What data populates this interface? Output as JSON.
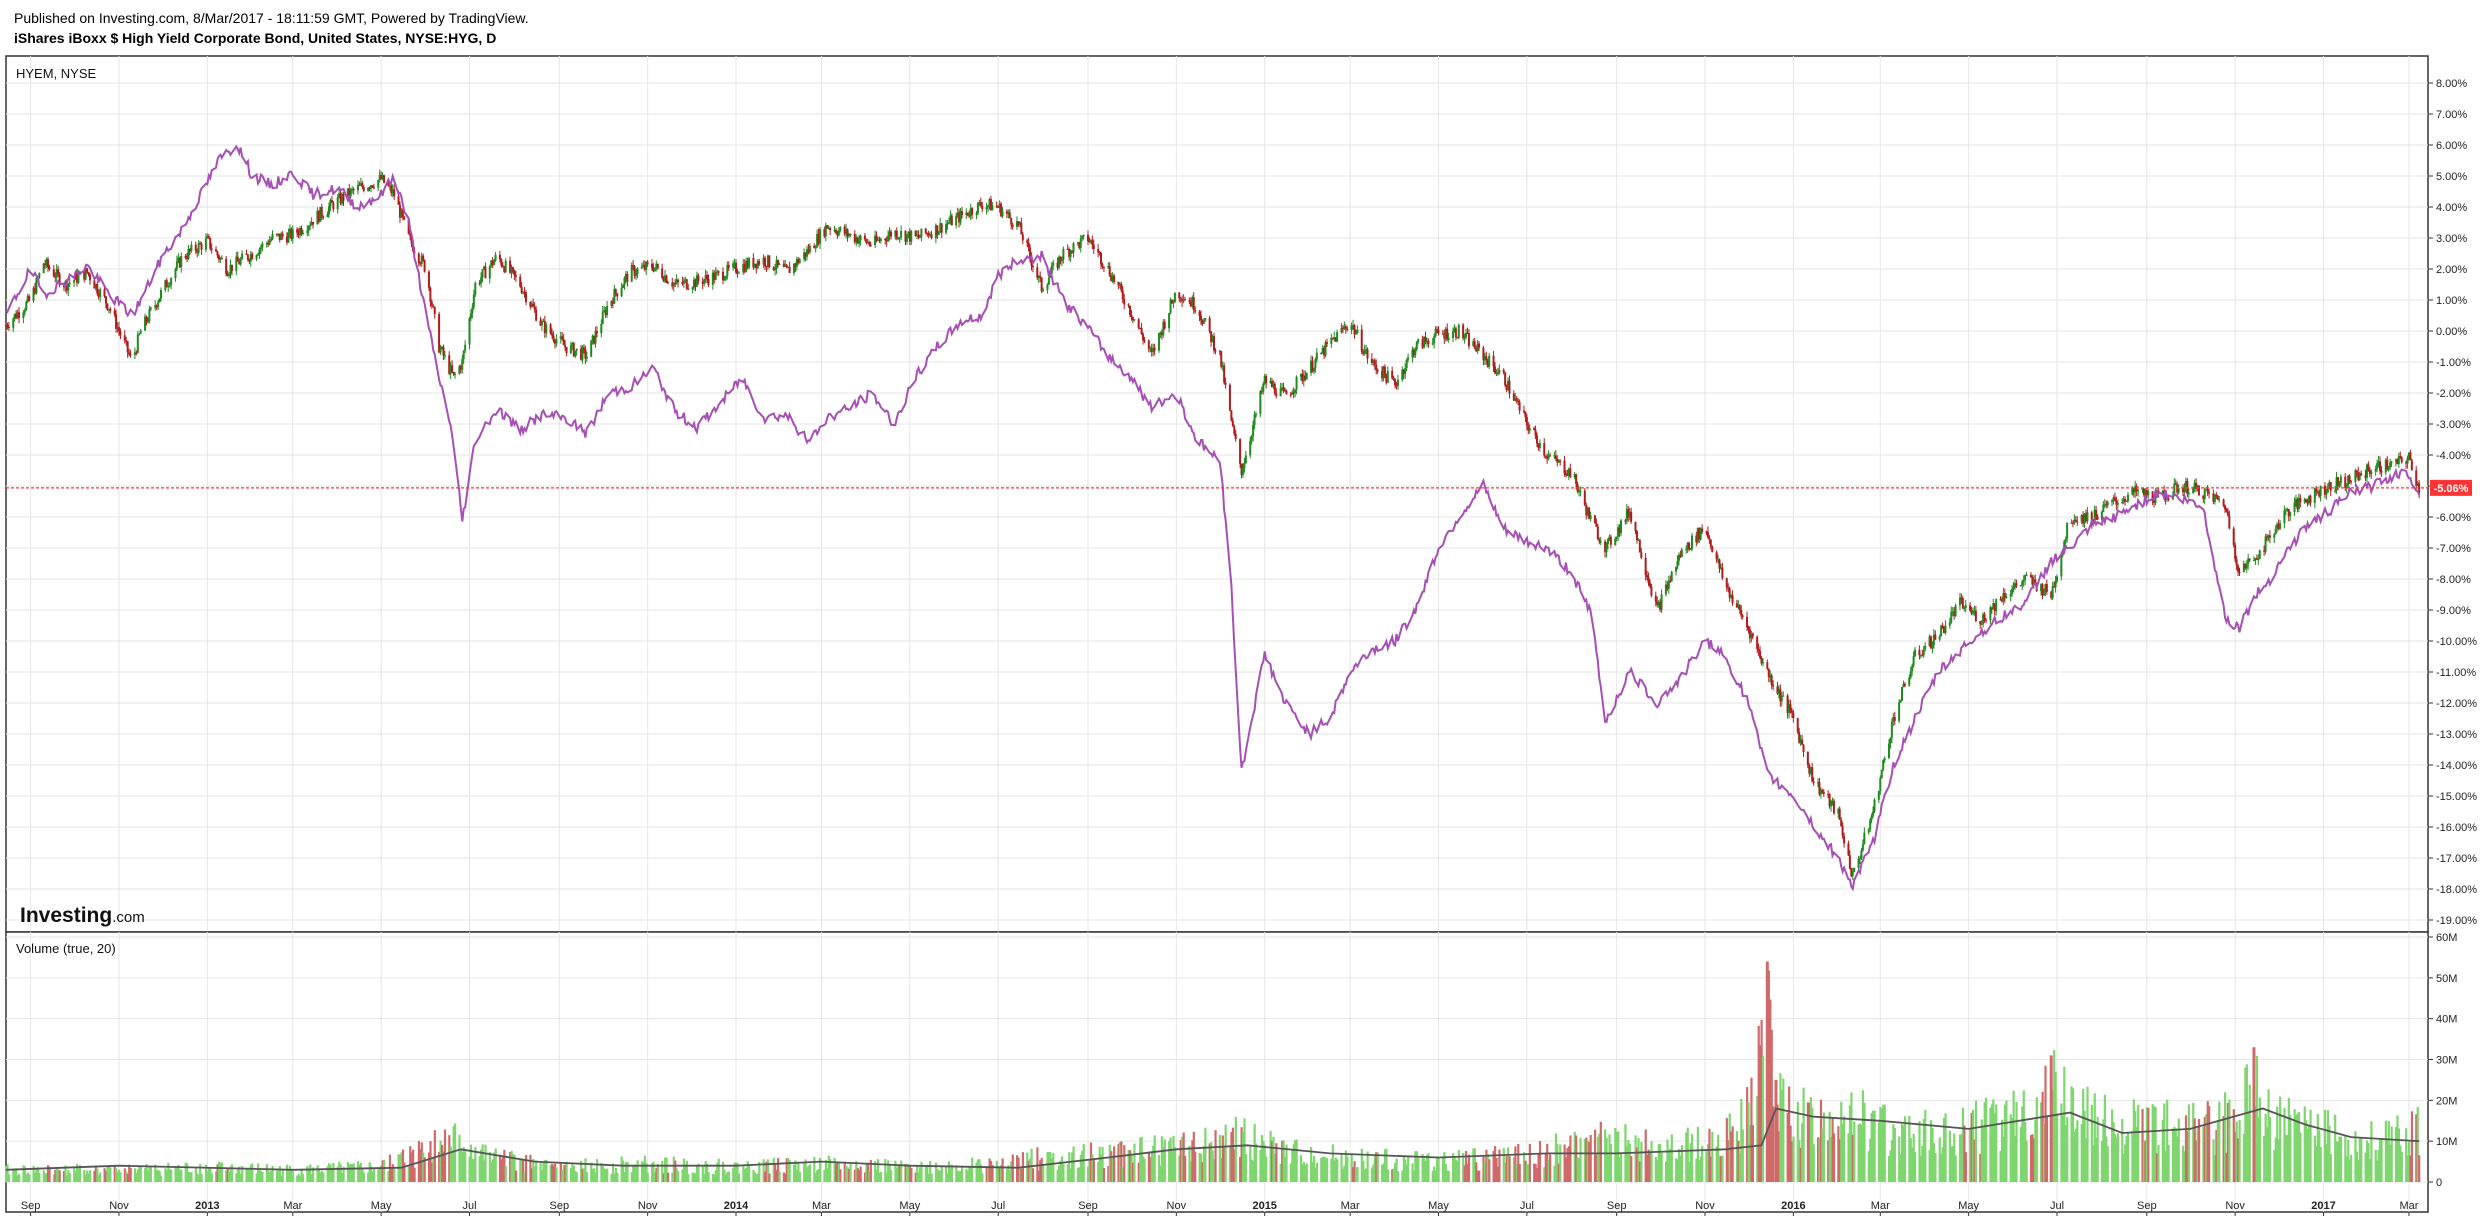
{
  "header": {
    "published": "Published on Investing.com, 8/Mar/2017 - 18:11:59 GMT, Powered by TradingView.",
    "instrument": "iShares iBoxx $ High Yield Corporate Bond, United States, NYSE:HYG, D"
  },
  "brand": {
    "bold": "Investing",
    "suffix": ".com"
  },
  "colors": {
    "up": "#1f8a1f",
    "down": "#b01c1c",
    "compare_line": "#a64fb4",
    "current_line": "#ff3333",
    "volume_up": "#7fd66f",
    "volume_down": "#d06a6a",
    "volume_ma": "#555555",
    "grid": "#e6e6e6",
    "frame": "#333333"
  },
  "chart_data": [
    {
      "type": "line",
      "pane": "price",
      "title": "HYEM, NYSE",
      "scale": "percent",
      "x_axis_labels": [
        "Sep",
        "Nov",
        "2013",
        "Mar",
        "May",
        "Jul",
        "Sep",
        "Nov",
        "2014",
        "Mar",
        "May",
        "Jul",
        "Sep",
        "Nov",
        "2015",
        "Mar",
        "May",
        "Jul",
        "Sep",
        "Nov",
        "2016",
        "Mar",
        "May",
        "Jul",
        "Sep",
        "Nov",
        "2017",
        "Mar"
      ],
      "x_axis_bold": [
        "2013",
        "2014",
        "2015",
        "2016",
        "2017"
      ],
      "x_range": [
        "2012-08-15",
        "2017-03-10"
      ],
      "y_ticks": [
        "8.00%",
        "7.00%",
        "6.00%",
        "5.00%",
        "4.00%",
        "3.00%",
        "2.00%",
        "1.00%",
        "0.00%",
        "-1.00%",
        "-2.00%",
        "-3.00%",
        "-4.00%",
        "-5.00%",
        "-6.00%",
        "-7.00%",
        "-8.00%",
        "-9.00%",
        "-10.00%",
        "-11.00%",
        "-12.00%",
        "-13.00%",
        "-14.00%",
        "-15.00%",
        "-16.00%",
        "-17.00%",
        "-18.00%",
        "-19.00%"
      ],
      "ylim": [
        -19.5,
        8.6
      ],
      "current_value_label": "-5.06%",
      "current_value": -5.06,
      "grid": true,
      "series": [
        {
          "name": "HYG",
          "style": "candlestick",
          "x": [
            "2012-08-15",
            "2012-09-01",
            "2012-09-10",
            "2012-09-25",
            "2012-10-10",
            "2012-10-25",
            "2012-11-10",
            "2012-11-16",
            "2012-12-01",
            "2012-12-15",
            "2013-01-01",
            "2013-01-15",
            "2013-02-01",
            "2013-02-15",
            "2013-03-01",
            "2013-03-15",
            "2013-04-01",
            "2013-04-15",
            "2013-05-01",
            "2013-05-10",
            "2013-05-20",
            "2013-06-01",
            "2013-06-10",
            "2013-06-20",
            "2013-06-26",
            "2013-07-05",
            "2013-07-20",
            "2013-08-05",
            "2013-08-20",
            "2013-09-05",
            "2013-09-20",
            "2013-10-05",
            "2013-10-20",
            "2013-11-05",
            "2013-11-20",
            "2013-12-05",
            "2013-12-20",
            "2014-01-05",
            "2014-01-20",
            "2014-02-05",
            "2014-02-20",
            "2014-03-05",
            "2014-03-20",
            "2014-04-05",
            "2014-04-20",
            "2014-05-05",
            "2014-05-20",
            "2014-06-05",
            "2014-06-20",
            "2014-07-01",
            "2014-07-15",
            "2014-07-31",
            "2014-08-15",
            "2014-09-01",
            "2014-09-15",
            "2014-10-01",
            "2014-10-15",
            "2014-11-01",
            "2014-11-15",
            "2014-12-01",
            "2014-12-10",
            "2014-12-16",
            "2015-01-01",
            "2015-01-15",
            "2015-02-01",
            "2015-02-15",
            "2015-03-01",
            "2015-03-15",
            "2015-04-01",
            "2015-04-15",
            "2015-05-01",
            "2015-05-15",
            "2015-06-01",
            "2015-06-15",
            "2015-07-01",
            "2015-07-15",
            "2015-08-01",
            "2015-08-15",
            "2015-08-25",
            "2015-09-10",
            "2015-09-29",
            "2015-10-15",
            "2015-11-01",
            "2015-11-15",
            "2015-12-01",
            "2015-12-14",
            "2016-01-01",
            "2016-01-15",
            "2016-02-01",
            "2016-02-11",
            "2016-02-25",
            "2016-03-10",
            "2016-03-25",
            "2016-04-10",
            "2016-04-25",
            "2016-05-10",
            "2016-05-25",
            "2016-06-10",
            "2016-06-27",
            "2016-07-10",
            "2016-07-25",
            "2016-08-10",
            "2016-08-25",
            "2016-09-10",
            "2016-09-25",
            "2016-10-10",
            "2016-10-25",
            "2016-11-04",
            "2016-11-20",
            "2016-12-05",
            "2016-12-20",
            "2017-01-05",
            "2017-01-20",
            "2017-02-05",
            "2017-02-20",
            "2017-03-01",
            "2017-03-08"
          ],
          "values": [
            0.2,
            1.0,
            2.2,
            1.5,
            1.9,
            0.8,
            -1.0,
            0.0,
            1.3,
            2.4,
            2.9,
            2.0,
            2.5,
            3.0,
            3.1,
            3.6,
            4.2,
            4.6,
            4.9,
            4.4,
            3.0,
            2.0,
            -0.5,
            -1.5,
            -1.0,
            1.5,
            2.4,
            1.5,
            0.2,
            -0.5,
            -0.8,
            0.9,
            1.9,
            2.1,
            1.5,
            1.6,
            1.8,
            2.1,
            2.3,
            1.9,
            2.6,
            3.4,
            3.1,
            2.8,
            3.2,
            3.0,
            3.3,
            3.7,
            4.1,
            4.0,
            3.4,
            1.4,
            2.5,
            3.0,
            2.0,
            0.6,
            -0.8,
            1.3,
            0.8,
            -0.8,
            -3.2,
            -4.5,
            -1.6,
            -2.1,
            -1.2,
            -0.4,
            0.3,
            -1.0,
            -1.7,
            -0.5,
            -0.1,
            0.0,
            -0.8,
            -1.5,
            -3.0,
            -4.0,
            -4.6,
            -6.2,
            -7.0,
            -5.8,
            -9.0,
            -7.2,
            -6.3,
            -8.2,
            -9.6,
            -11.0,
            -12.5,
            -14.5,
            -15.6,
            -17.6,
            -15.5,
            -12.5,
            -10.5,
            -9.8,
            -8.8,
            -9.3,
            -8.5,
            -8.0,
            -8.5,
            -6.0,
            -6.0,
            -5.5,
            -5.2,
            -5.4,
            -5.0,
            -5.2,
            -5.6,
            -7.8,
            -7.0,
            -5.9,
            -5.4,
            -5.0,
            -4.8,
            -4.4,
            -4.3,
            -4.1,
            -5.1
          ]
        },
        {
          "name": "HYEM",
          "style": "line",
          "x": [
            "2012-08-15",
            "2012-09-01",
            "2012-09-10",
            "2012-09-25",
            "2012-10-10",
            "2012-10-25",
            "2012-11-10",
            "2012-11-16",
            "2012-12-01",
            "2012-12-15",
            "2013-01-01",
            "2013-01-10",
            "2013-01-22",
            "2013-02-01",
            "2013-02-15",
            "2013-03-01",
            "2013-03-15",
            "2013-04-01",
            "2013-04-15",
            "2013-05-01",
            "2013-05-10",
            "2013-05-20",
            "2013-06-01",
            "2013-06-10",
            "2013-06-18",
            "2013-06-26",
            "2013-07-05",
            "2013-07-20",
            "2013-08-05",
            "2013-08-20",
            "2013-09-05",
            "2013-09-20",
            "2013-10-05",
            "2013-10-20",
            "2013-11-05",
            "2013-11-20",
            "2013-12-05",
            "2013-12-20",
            "2014-01-05",
            "2014-01-20",
            "2014-02-05",
            "2014-02-20",
            "2014-03-05",
            "2014-03-20",
            "2014-04-05",
            "2014-04-20",
            "2014-05-05",
            "2014-05-20",
            "2014-06-05",
            "2014-06-20",
            "2014-07-01",
            "2014-07-15",
            "2014-07-31",
            "2014-08-15",
            "2014-09-01",
            "2014-09-15",
            "2014-10-01",
            "2014-10-15",
            "2014-11-01",
            "2014-11-15",
            "2014-12-01",
            "2014-12-08",
            "2014-12-16",
            "2015-01-01",
            "2015-01-15",
            "2015-02-01",
            "2015-02-15",
            "2015-03-01",
            "2015-03-15",
            "2015-04-01",
            "2015-04-15",
            "2015-05-01",
            "2015-05-15",
            "2015-06-01",
            "2015-06-15",
            "2015-07-01",
            "2015-07-15",
            "2015-08-01",
            "2015-08-15",
            "2015-08-24",
            "2015-09-10",
            "2015-09-29",
            "2015-10-15",
            "2015-11-01",
            "2015-11-15",
            "2015-12-01",
            "2015-12-14",
            "2016-01-01",
            "2016-01-20",
            "2016-02-01",
            "2016-02-11",
            "2016-02-25",
            "2016-03-10",
            "2016-03-25",
            "2016-04-10",
            "2016-04-25",
            "2016-05-10",
            "2016-05-25",
            "2016-06-10",
            "2016-06-27",
            "2016-07-10",
            "2016-07-25",
            "2016-08-10",
            "2016-08-25",
            "2016-09-10",
            "2016-09-25",
            "2016-10-10",
            "2016-10-25",
            "2016-11-04",
            "2016-11-14",
            "2016-11-25",
            "2016-12-05",
            "2016-12-20",
            "2017-01-05",
            "2017-01-20",
            "2017-02-05",
            "2017-02-20",
            "2017-03-01",
            "2017-03-08"
          ],
          "values": [
            0.5,
            2.0,
            1.2,
            1.6,
            2.1,
            1.2,
            0.5,
            1.0,
            2.4,
            3.3,
            4.8,
            5.6,
            6.0,
            5.0,
            4.7,
            5.1,
            4.4,
            4.6,
            4.0,
            4.4,
            5.0,
            3.5,
            0.5,
            -1.5,
            -3.0,
            -6.1,
            -3.5,
            -2.5,
            -3.2,
            -2.7,
            -2.8,
            -3.3,
            -2.0,
            -1.8,
            -1.2,
            -2.6,
            -3.1,
            -2.4,
            -1.5,
            -2.8,
            -2.7,
            -3.6,
            -2.8,
            -2.5,
            -2.0,
            -3.0,
            -1.5,
            -0.5,
            0.3,
            0.5,
            1.8,
            2.3,
            2.4,
            1.0,
            0.1,
            -0.8,
            -1.5,
            -2.5,
            -2.0,
            -3.5,
            -4.2,
            -7.5,
            -14.2,
            -10.4,
            -12.0,
            -13.0,
            -12.5,
            -11.0,
            -10.3,
            -10.0,
            -9.0,
            -7.0,
            -6.0,
            -5.0,
            -6.4,
            -6.8,
            -7.0,
            -7.8,
            -9.2,
            -12.6,
            -11.0,
            -12.0,
            -11.2,
            -10.0,
            -10.5,
            -12.0,
            -14.3,
            -15.0,
            -16.3,
            -17.0,
            -17.9,
            -16.5,
            -14.0,
            -12.5,
            -11.0,
            -10.3,
            -9.7,
            -9.2,
            -8.7,
            -7.4,
            -7.0,
            -6.3,
            -6.0,
            -5.6,
            -5.2,
            -5.4,
            -5.7,
            -9.2,
            -9.6,
            -8.6,
            -8.0,
            -7.2,
            -6.3,
            -5.8,
            -5.2,
            -5.0,
            -4.6,
            -4.6,
            -5.2
          ]
        }
      ]
    },
    {
      "type": "bar",
      "pane": "volume",
      "title": "Volume (true, 20)",
      "y_ticks": [
        "60M",
        "50M",
        "40M",
        "30M",
        "20M",
        "10M",
        "0"
      ],
      "ylim": [
        0,
        60
      ],
      "unit": "M shares",
      "grid": true,
      "series": [
        {
          "name": "Volume",
          "x": [
            "2012-09-01",
            "2012-11-01",
            "2013-01-01",
            "2013-03-01",
            "2013-05-01",
            "2013-06-10",
            "2013-06-24",
            "2013-07-15",
            "2013-09-01",
            "2013-11-01",
            "2014-01-01",
            "2014-03-01",
            "2014-05-01",
            "2014-07-01",
            "2014-08-01",
            "2014-10-01",
            "2014-11-20",
            "2014-12-16",
            "2015-01-15",
            "2015-03-01",
            "2015-05-01",
            "2015-07-01",
            "2015-08-24",
            "2015-10-01",
            "2015-11-15",
            "2015-12-01",
            "2015-12-14",
            "2015-12-20",
            "2016-01-15",
            "2016-02-11",
            "2016-03-01",
            "2016-04-15",
            "2016-06-01",
            "2016-06-27",
            "2016-08-01",
            "2016-09-15",
            "2016-10-15",
            "2016-11-04",
            "2016-11-14",
            "2016-12-01",
            "2017-01-15",
            "2017-02-15",
            "2017-03-08"
          ],
          "values": [
            4,
            4,
            5,
            4,
            5,
            13,
            14,
            8,
            5,
            6,
            5,
            6,
            5,
            6,
            8,
            10,
            12,
            15,
            10,
            8,
            7,
            9,
            14,
            11,
            14,
            22,
            54,
            25,
            20,
            24,
            18,
            16,
            21,
            31,
            20,
            19,
            18,
            22,
            33,
            20,
            15,
            14,
            17
          ]
        },
        {
          "name": "Volume MA",
          "style": "line",
          "x": [
            "2012-08-15",
            "2012-11-01",
            "2013-03-01",
            "2013-05-15",
            "2013-06-25",
            "2013-08-15",
            "2013-10-15",
            "2014-01-01",
            "2014-03-01",
            "2014-05-01",
            "2014-07-15",
            "2014-09-15",
            "2014-11-01",
            "2014-12-20",
            "2015-02-15",
            "2015-05-01",
            "2015-07-15",
            "2015-09-01",
            "2015-11-15",
            "2015-12-10",
            "2015-12-20",
            "2016-01-15",
            "2016-03-01",
            "2016-05-01",
            "2016-07-10",
            "2016-08-15",
            "2016-10-01",
            "2016-11-20",
            "2016-12-20",
            "2017-01-20",
            "2017-03-08"
          ],
          "values": [
            3,
            4,
            3,
            3.5,
            8,
            5,
            4,
            4,
            5,
            4,
            3.5,
            6,
            8,
            9,
            7,
            6,
            7,
            7,
            8,
            9,
            18,
            16,
            15,
            13,
            17,
            12,
            13,
            18,
            14,
            11,
            10
          ]
        }
      ]
    }
  ]
}
